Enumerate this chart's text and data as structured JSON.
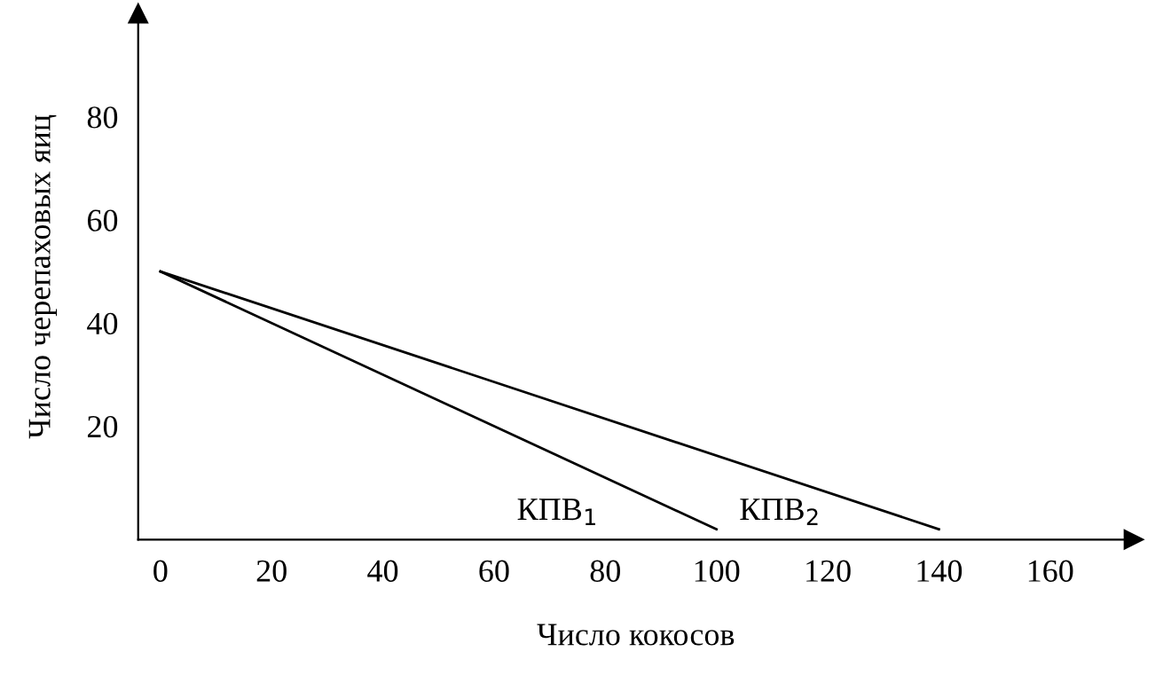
{
  "chart_data": {
    "type": "line",
    "xlabel": "Число кокосов",
    "ylabel": "Число черепаховых яиц",
    "series": [
      {
        "name": "КПВ$_{1}$",
        "color": "#000000",
        "x": [
          0,
          100
        ],
        "values": [
          50,
          0
        ]
      },
      {
        "name": "КПВ$_{2}$",
        "color": "#000000",
        "x": [
          0,
          140
        ],
        "values": [
          50,
          0
        ]
      }
    ],
    "xlim": [
      -4,
      175
    ],
    "ylim": [
      -2,
      100
    ],
    "xticks": [
      0,
      20,
      40,
      60,
      80,
      100,
      120,
      140,
      160
    ],
    "yticks": [
      20,
      40,
      60,
      80
    ],
    "grid": false,
    "legend": false,
    "marker": "none",
    "line_style": "solid"
  }
}
